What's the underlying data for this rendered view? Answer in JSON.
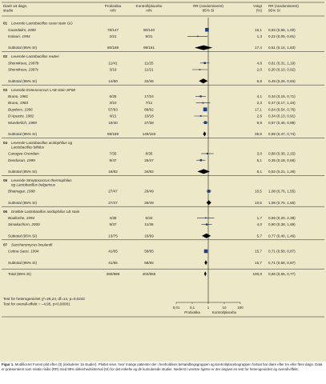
{
  "header": {
    "col_study": "Diaré ≥3 døgn,\nstudie",
    "col_probiotics": "Probiotika\nn/N",
    "col_control": "Kontroll/placebo\nn/N",
    "col_rr": "RR (randomiseret)\n95% SI",
    "col_weight": "Vægt\n(%)",
    "col_rr_ci": "RR (randomiseret)\n95% SI"
  },
  "chart_data": {
    "type": "forest",
    "x_scale": "log",
    "xlim": [
      0.01,
      100
    ],
    "x_ticks": [
      "0,01",
      "0,1",
      "1",
      "10",
      "100"
    ],
    "x_labels": [
      "Probiotika",
      "Kontrol/placebo"
    ],
    "marker_color": "#1f3d8a",
    "groups": [
      {
        "id": "01",
        "title": "Levende Lactobacillus casei stain GG",
        "studies": [
          {
            "name": "Guandalini, 2000",
            "probiotics": "78/147",
            "control": "90/140",
            "weight": "16,1",
            "ci_text": "0,83 (0,68, 1,00)",
            "rr": 0.83,
            "lo": 0.68,
            "hi": 1.0
          },
          {
            "name": "Isolauri, 1994",
            "probiotics": "2/21",
            "control": "9/21",
            "weight": "1,3",
            "ci_text": "0,22 (0,05, 0,91)",
            "rr": 0.22,
            "lo": 0.05,
            "hi": 0.91
          }
        ],
        "subtotal": {
          "label": "Subtotal (95% SI)",
          "probiotics": "80/168",
          "control": "99/161",
          "weight": "17,4",
          "ci_text": "0,51 (0,14, 1,83)",
          "rr": 0.51,
          "lo": 0.14,
          "hi": 1.83
        }
      },
      {
        "id": "02",
        "title": "Levende Lactobacillus reuteri",
        "studies": [
          {
            "name": "Shornikova, 1997b",
            "probiotics": "11/41",
            "control": "11/25",
            "weight": "4,8",
            "ci_text": "0,61 (0,31, 1,19)",
            "rr": 0.61,
            "lo": 0.31,
            "hi": 1.19
          },
          {
            "name": "Shornikova, 1997c",
            "probiotics": "3/19",
            "control": "11/21",
            "weight": "2,0",
            "ci_text": "0,30 (0,10, 0,92)",
            "rr": 0.3,
            "lo": 0.1,
            "hi": 0.92
          }
        ],
        "subtotal": {
          "label": "Subtotal (95% SI)",
          "probiotics": "14/60",
          "control": "22/46",
          "weight": "6,8",
          "ci_text": "0,49 (0,26, 0,94)",
          "rr": 0.49,
          "lo": 0.26,
          "hi": 0.94
        }
      },
      {
        "id": "03",
        "title": "Levende Enterococcus LAB stain SF68",
        "studies": [
          {
            "name": "Bruno, 1981",
            "probiotics": "6/25",
            "control": "17/24",
            "weight": "4,1",
            "ci_text": "0,34 (0,16, 0,71)",
            "rr": 0.34,
            "lo": 0.16,
            "hi": 0.71
          },
          {
            "name": "Bruno, 1983",
            "probiotics": "3/10",
            "control": "7/11",
            "weight": "2,3",
            "ci_text": "0,47 (0,17, 1,34)",
            "rr": 0.47,
            "lo": 0.17,
            "hi": 1.34
          },
          {
            "name": "Buydens, 1996",
            "probiotics": "57/93",
            "control": "88/92",
            "weight": "17,1",
            "ci_text": "0,64 (0,54, 0,76)",
            "rr": 0.64,
            "lo": 0.54,
            "hi": 0.76
          },
          {
            "name": "D'Apuzzo, 1982",
            "probiotics": "4/21",
            "control": "10/18",
            "weight": "2,6",
            "ci_text": "0,34 (0,13, 0,91)",
            "rr": 0.34,
            "lo": 0.13,
            "hi": 0.91
          },
          {
            "name": "Wunderlich, 1989",
            "probiotics": "19/40",
            "control": "27/38",
            "weight": "9,9",
            "ci_text": "0,67 (0,46, 0,98)",
            "rr": 0.67,
            "lo": 0.46,
            "hi": 0.98
          }
        ],
        "subtotal": {
          "label": "Subtotal (95% SI)",
          "probiotics": "89/189",
          "control": "149/183",
          "weight": "35,9",
          "ci_text": "0,59 (0,47, 0,74)",
          "rr": 0.59,
          "lo": 0.47,
          "hi": 0.74
        }
      },
      {
        "id": "04",
        "title": "Levende Lactobacillus acidophilus og\nLactobacillus bifidus",
        "studies": [
          {
            "name": "Canagve-Orendain",
            "probiotics": "7/35",
            "control": "8/35",
            "weight": "3,0",
            "ci_text": "0,88 (0,36, 2,15)",
            "rr": 0.88,
            "lo": 0.36,
            "hi": 2.15
          },
          {
            "name": "Dendasan, 1999",
            "probiotics": "9/47",
            "control": "26/47",
            "weight": "5,1",
            "ci_text": "0,35 (0,18, 0,66)",
            "rr": 0.35,
            "lo": 0.18,
            "hi": 0.66
          }
        ],
        "subtotal": {
          "label": "Subtotal (95% SI)",
          "probiotics": "16/82",
          "control": "34/82",
          "weight": "8,1",
          "ci_text": "0,52 (0,21, 1,28)",
          "rr": 0.52,
          "lo": 0.21,
          "hi": 1.28
        }
      },
      {
        "id": "05",
        "title": "Levende Streptococcus thermophilus\nog Lactobacillus bulgaricus",
        "studies": [
          {
            "name": "Bhatnagar, 1998",
            "probiotics": "27/47",
            "control": "26/49",
            "weight": "10,5",
            "ci_text": "1,08 (0,76, 1,55)",
            "rr": 1.08,
            "lo": 0.76,
            "hi": 1.55
          }
        ],
        "subtotal": {
          "label": "Subtotal (95% SI)",
          "probiotics": "27/47",
          "control": "26/49",
          "weight": "10,5",
          "ci_text": "1,08 (0,76, 1,55)",
          "rr": 1.08,
          "lo": 0.76,
          "hi": 1.55
        }
      },
      {
        "id": "06",
        "title": "Dræbte Lactobacillus acidophilus LB stain",
        "studies": [
          {
            "name": "Boulloche, 1994",
            "probiotics": "4/38",
            "control": "5/33",
            "weight": "1,7",
            "ci_text": "0,69 (0,20, 2,38)",
            "rr": 0.69,
            "lo": 0.2,
            "hi": 2.38
          },
          {
            "name": "Simakachorn, 2000",
            "probiotics": "9/37",
            "control": "11/36",
            "weight": "4,0",
            "ci_text": "0,80 (0,38, 1,69)",
            "rr": 0.8,
            "lo": 0.38,
            "hi": 1.69
          }
        ],
        "subtotal": {
          "label": "Subtotal (95% SI)",
          "probiotics": "13/75",
          "control": "16/69",
          "weight": "5,7",
          "ci_text": "0,77 (0,40, 1,46)",
          "rr": 0.77,
          "lo": 0.4,
          "hi": 1.46
        }
      },
      {
        "id": "07",
        "title": "Saccharomyces boulardii",
        "studies": [
          {
            "name": "Cetina-Sauri, 1994",
            "probiotics": "41/65",
            "control": "58/65",
            "weight": "15,7",
            "ci_text": "0,71 (0,58, 0,87)",
            "rr": 0.71,
            "lo": 0.58,
            "hi": 0.87
          }
        ],
        "subtotal": {
          "label": "Subtotal (95% SI)",
          "probiotics": "41/65",
          "control": "58/65",
          "weight": "15,7",
          "ci_text": "0,71 (0,58, 0,87)",
          "rr": 0.71,
          "lo": 0.58,
          "hi": 0.87
        }
      }
    ],
    "total": {
      "label": "Total (95% SI)",
      "probiotics": "280/686",
      "control": "404/655",
      "weight": "100,0",
      "ci_text": "0,66 (0,55, 0,77)",
      "rr": 0.66,
      "lo": 0.55,
      "hi": 0.77
    }
  },
  "tests": {
    "heterogeneity": "Test for heterogenicitet χ²=26,24, df=14, p=0,0242",
    "overall": "Test for overall-effekt = –4,95, p<0,00001"
  },
  "caption": {
    "label": "Figur 1.",
    "text": "Modificeret Forest plot efter (3) (inkluderer 15 studier). Plottet viser, hvor mange patienter der i henholdsvis behandlingsgruppen og kontrol/placebogruppen fortsat har diaré efter tre eller flere døgn. Data er præsenteret som relativ risiko (RR) med 95% sikkerhedsinterval (SI) for det enkelte og de kumulerede studier. Nederst i venstre hjørne er der angivet en test for heterogenicitet og overall-effekt."
  }
}
